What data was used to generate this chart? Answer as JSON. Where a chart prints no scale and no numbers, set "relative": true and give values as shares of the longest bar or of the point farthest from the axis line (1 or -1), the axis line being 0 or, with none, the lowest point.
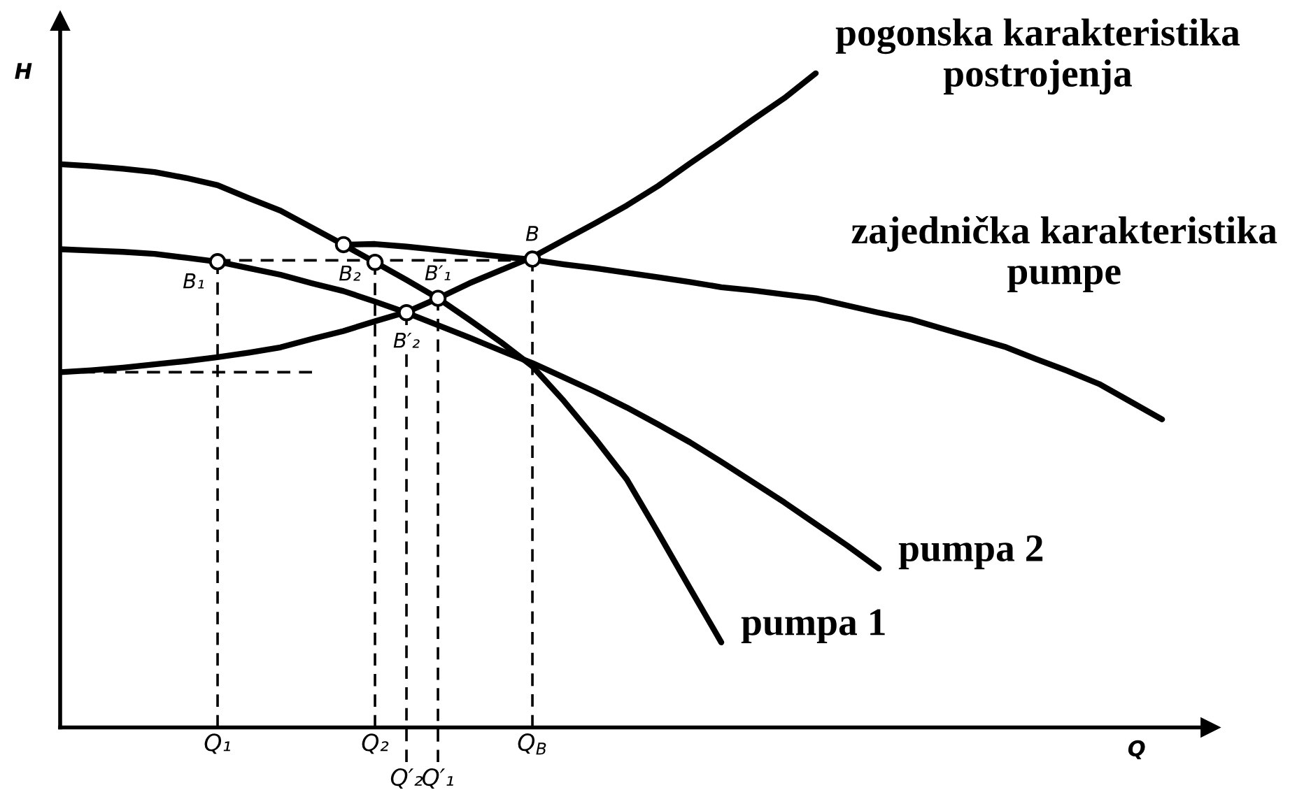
{
  "chart_data": {
    "type": "line",
    "relative": true,
    "xlabel": "Q",
    "ylabel": "H",
    "tick_labels": "x",
    "categories": [
      null,
      null,
      null,
      null,
      null,
      "Q₁",
      null,
      null,
      null,
      null,
      "Q₂",
      "Q′₂",
      "Q′₁",
      null,
      null,
      "Q$_{B}$",
      null,
      null,
      null,
      null,
      null,
      null,
      null,
      null,
      null,
      null,
      null,
      null,
      null,
      null,
      null,
      null,
      null,
      null,
      null,
      null
    ],
    "series": [
      {
        "name": "pumpa 1",
        "color": "#000000",
        "values": [
          0.861,
          0.858,
          0.854,
          0.849,
          0.84,
          0.829,
          0.809,
          0.79,
          0.764,
          0.738,
          0.711,
          0.684,
          0.656,
          0.623,
          0.589,
          0.552,
          0.499,
          0.441,
          0.379,
          0.297,
          0.213,
          0.13,
          null,
          null,
          null,
          null,
          null,
          null,
          null,
          null,
          null,
          null,
          null,
          null,
          null,
          null
        ]
      },
      {
        "name": "pumpa 2",
        "color": "#000000",
        "values": [
          0.731,
          0.729,
          0.727,
          0.724,
          0.718,
          0.712,
          0.702,
          0.692,
          0.679,
          0.667,
          0.651,
          0.634,
          0.615,
          0.596,
          0.576,
          0.557,
          0.535,
          0.513,
          0.489,
          0.463,
          0.436,
          0.406,
          0.375,
          0.344,
          0.311,
          0.278,
          0.243,
          null,
          null,
          null,
          null,
          null,
          null,
          null,
          null,
          null
        ]
      },
      {
        "name": "zajednička karakteristika\npumpe",
        "color": "#000000",
        "values": [
          null,
          null,
          null,
          null,
          null,
          null,
          null,
          null,
          null,
          0.738,
          0.739,
          0.735,
          0.73,
          0.725,
          0.72,
          0.715,
          0.708,
          0.702,
          0.695,
          0.688,
          0.681,
          0.673,
          0.668,
          0.662,
          0.656,
          0.645,
          0.634,
          0.624,
          0.61,
          0.596,
          0.582,
          0.563,
          0.545,
          0.525,
          0.498,
          0.471
        ]
      },
      {
        "name": "pogonska karakteristika\npostrojenja",
        "color": "#000000",
        "values": [
          0.543,
          0.546,
          0.55,
          0.555,
          0.56,
          0.566,
          0.573,
          0.581,
          0.594,
          0.606,
          0.621,
          0.635,
          0.656,
          0.679,
          0.699,
          0.719,
          0.745,
          0.771,
          0.798,
          0.828,
          0.862,
          0.895,
          0.929,
          0.962,
          1.0,
          null,
          null,
          null,
          null,
          null,
          null,
          null,
          null,
          null,
          null,
          null
        ]
      },
      {
        "type": "scatter",
        "marker": "circle",
        "color": "#000000",
        "values": [
          null,
          null,
          null,
          null,
          null,
          0.712,
          null,
          null,
          null,
          0.738,
          0.711,
          0.634,
          0.656,
          null,
          null,
          0.716,
          null,
          null,
          null,
          null,
          null,
          null,
          null,
          null,
          null,
          null,
          null,
          null,
          null,
          null,
          null,
          null,
          null,
          null,
          null,
          null
        ]
      },
      {
        "line_style": "dashed",
        "color": "#000000",
        "values": [
          null,
          null,
          null,
          null,
          null,
          0.714,
          0.714,
          0.714,
          0.714,
          0.714,
          0.714,
          0.714,
          0.714,
          0.714,
          0.714,
          0.714,
          null,
          null,
          null,
          null,
          null,
          null,
          null,
          null,
          null,
          null,
          null,
          null,
          null,
          null,
          null,
          null,
          null,
          null,
          null,
          null
        ]
      },
      {
        "line_style": "dashed",
        "color": "#000000",
        "values": [
          0.543,
          0.543,
          0.543,
          0.543,
          0.543,
          0.543,
          0.543,
          0.543,
          0.543,
          null,
          null,
          null,
          null,
          null,
          null,
          null,
          null,
          null,
          null,
          null,
          null,
          null,
          null,
          null,
          null,
          null,
          null,
          null,
          null,
          null,
          null,
          null,
          null,
          null,
          null,
          null
        ]
      },
      {
        "line_style": "dashed",
        "color": "#000000",
        "x": [
          "Q₁",
          "Q₁"
        ],
        "values": [
          0,
          0.712
        ]
      },
      {
        "line_style": "dashed",
        "color": "#000000",
        "x": [
          "Q₂",
          "Q₂"
        ],
        "values": [
          0,
          0.711
        ]
      },
      {
        "line_style": "dashed",
        "color": "#000000",
        "x": [
          "Q′₂",
          "Q′₂"
        ],
        "values": [
          -0.053,
          0.634
        ]
      },
      {
        "line_style": "dashed",
        "color": "#000000",
        "x": [
          "Q′₁",
          "Q′₁"
        ],
        "values": [
          -0.053,
          0.656
        ]
      },
      {
        "line_style": "dashed",
        "color": "#000000",
        "x": [
          "Q$_{B}$",
          "Q$_{B}$"
        ],
        "values": [
          0,
          0.716
        ]
      }
    ],
    "annotations": [
      {
        "text": "B",
        "x": "Q$_{B}$",
        "y": 0.716
      },
      {
        "text": "B₁",
        "x": "Q₁",
        "y": 0.712
      },
      {
        "text": "B₂",
        "x": "Q₂",
        "y": 0.711
      },
      {
        "text": "B′₁",
        "x": "Q′₁",
        "y": 0.656
      },
      {
        "text": "B′₂",
        "x": "Q′₂",
        "y": 0.634
      }
    ]
  }
}
